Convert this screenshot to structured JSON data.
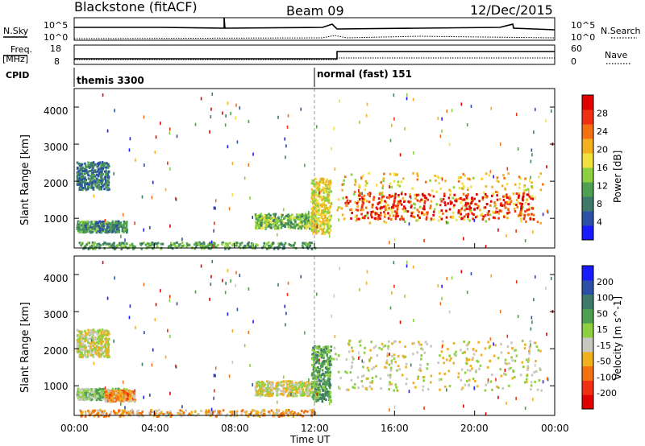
{
  "header": {
    "station": "Blackstone (fitACF)",
    "beam": "Beam 09",
    "date": "12/Dec/2015"
  },
  "panels_top": {
    "nsky_label": "N.Sky",
    "nsearch_label": "N.Search",
    "nsky_tick_hi": "10^5",
    "nsky_tick_lo": "10^0",
    "freq_label": "Freq.",
    "freq_unit": "[MHz]",
    "freq_tick_hi": "18",
    "freq_tick_lo": "8",
    "nave_label": "Nave",
    "nave_tick_hi": "60",
    "nave_tick_lo": "0",
    "cpid_label": "CPID",
    "cpid_mode1": "themis 3300",
    "cpid_mode2": "normal (fast) 151"
  },
  "colors": {
    "power_scale": [
      "#1a1aff",
      "#2c4fa8",
      "#3e7a6a",
      "#4fa050",
      "#8fd040",
      "#f0e040",
      "#f5b020",
      "#f57010",
      "#f03010",
      "#e00000"
    ],
    "velocity_scale": [
      "#1a1aff",
      "#2c4fa8",
      "#3e7a6a",
      "#4fa050",
      "#8fd040",
      "#c8c8c0",
      "#f0b020",
      "#f57010",
      "#f03010",
      "#e00000"
    ],
    "ground_scatter": "#c8c8c0"
  },
  "chart_data": [
    {
      "type": "heatmap",
      "name": "power",
      "ylabel": "Slant Range [km]",
      "xlabel": "",
      "y_ticks": [
        "1000",
        "2000",
        "3000",
        "4000"
      ],
      "ylim": [
        200,
        4500
      ],
      "xlim_hours": [
        0,
        24
      ],
      "colorbar_label": "Power [dB]",
      "colorbar_ticks": [
        "4",
        "8",
        "12",
        "16",
        "20",
        "24",
        "28"
      ],
      "blobs": [
        {
          "t0": 0.1,
          "t1": 1.7,
          "r0": 1800,
          "r1": 2550,
          "level": 0.25
        },
        {
          "t0": 0.1,
          "t1": 2.6,
          "r0": 650,
          "r1": 950,
          "level": 0.3
        },
        {
          "t0": 0.2,
          "t1": 12.0,
          "r0": 200,
          "r1": 380,
          "level": 0.35
        },
        {
          "t0": 9.0,
          "t1": 12.0,
          "r0": 750,
          "r1": 1150,
          "level": 0.4
        },
        {
          "t0": 11.8,
          "t1": 12.8,
          "r0": 600,
          "r1": 2100,
          "level": 0.55
        },
        {
          "t0": 12.9,
          "t1": 23.4,
          "r0": 900,
          "r1": 2250,
          "level": 0.6
        },
        {
          "t0": 13.5,
          "t1": 23.0,
          "r0": 1000,
          "r1": 1700,
          "level": 0.9
        }
      ]
    },
    {
      "type": "heatmap",
      "name": "velocity",
      "ylabel": "Slant Range [km]",
      "xlabel": "Time UT",
      "x_ticks": [
        "00:00",
        "04:00",
        "08:00",
        "12:00",
        "16:00",
        "20:00",
        "00:00"
      ],
      "y_ticks": [
        "1000",
        "2000",
        "3000",
        "4000"
      ],
      "ylim": [
        200,
        4500
      ],
      "xlim_hours": [
        0,
        24
      ],
      "colorbar_label": "Velocity [m s^-1]",
      "colorbar_ticks": [
        "200",
        "100",
        "50",
        "15",
        "-15",
        "-50",
        "-100",
        "-200"
      ],
      "blobs": [
        {
          "t0": 0.1,
          "t1": 1.7,
          "r0": 1800,
          "r1": 2550,
          "level": 0.55
        },
        {
          "t0": 0.1,
          "t1": 2.6,
          "r0": 650,
          "r1": 950,
          "level": 0.45
        },
        {
          "t0": 1.5,
          "t1": 3.0,
          "r0": 600,
          "r1": 900,
          "level": 0.7
        },
        {
          "t0": 0.2,
          "t1": 12.0,
          "r0": 200,
          "r1": 380,
          "level": 0.65
        },
        {
          "t0": 9.0,
          "t1": 12.0,
          "r0": 750,
          "r1": 1150,
          "level": 0.55
        },
        {
          "t0": 11.8,
          "t1": 12.8,
          "r0": 600,
          "r1": 2100,
          "level": 0.35
        },
        {
          "t0": 12.9,
          "t1": 23.4,
          "r0": 900,
          "r1": 2250,
          "level": 0.55
        }
      ]
    }
  ]
}
